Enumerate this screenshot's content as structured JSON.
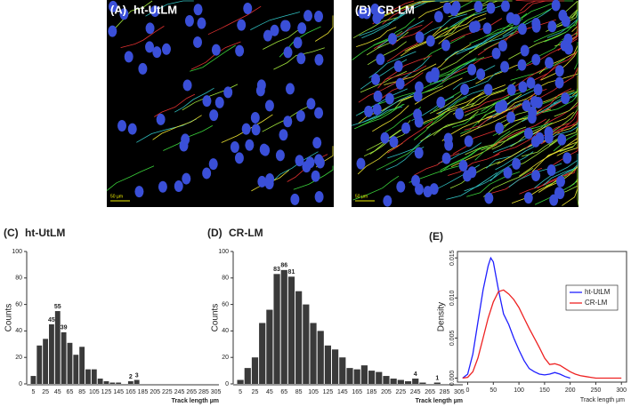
{
  "images": [
    {
      "panel": "(A)",
      "title": "ht-UtLM",
      "scale_bar": "50 µm"
    },
    {
      "panel": "(B)",
      "title": "CR-LM",
      "scale_bar": "50 µm"
    }
  ],
  "chart_data": [
    {
      "type": "bar",
      "panel": "(C)",
      "title": "ht-UtLM",
      "y_label": "Counts",
      "x_label": "Track length µm",
      "color": "#3a3a3a",
      "categories": [
        "5",
        null,
        "25",
        null,
        "45",
        null,
        "65",
        null,
        "85",
        null,
        "105",
        null,
        "125",
        null,
        "145",
        null,
        "165",
        null,
        "185",
        null,
        "205",
        null,
        "225",
        null,
        "245",
        null,
        "265",
        null,
        "285",
        null,
        "305"
      ],
      "values": [
        6,
        29,
        34,
        45,
        55,
        39,
        31,
        22,
        28,
        11,
        11,
        4,
        2,
        1,
        1,
        0,
        2,
        3,
        0,
        0,
        0,
        0,
        0,
        0,
        0,
        0,
        0,
        0,
        0,
        0,
        0
      ],
      "value_labels": [
        null,
        null,
        null,
        "45",
        "55",
        "39",
        null,
        null,
        null,
        null,
        null,
        null,
        null,
        null,
        null,
        null,
        "2",
        "3",
        null,
        null,
        null,
        null,
        null,
        null,
        null,
        null,
        null,
        null,
        null,
        null,
        null
      ],
      "ylim": [
        0,
        100
      ],
      "yticks": [
        0,
        20,
        40,
        60,
        80,
        100
      ]
    },
    {
      "type": "bar",
      "panel": "(D)",
      "title": "CR-LM",
      "y_label": "Counts",
      "x_label": "Track length µm",
      "color": "#3a3a3a",
      "categories": [
        "5",
        null,
        "25",
        null,
        "45",
        null,
        "65",
        null,
        "85",
        null,
        "105",
        null,
        "125",
        null,
        "145",
        null,
        "165",
        null,
        "185",
        null,
        "205",
        null,
        "225",
        null,
        "245",
        null,
        "265",
        null,
        "285",
        null,
        "305"
      ],
      "values": [
        3,
        12,
        20,
        46,
        56,
        83,
        86,
        81,
        70,
        60,
        46,
        40,
        29,
        26,
        20,
        12,
        11,
        14,
        10,
        9,
        6,
        4,
        3,
        2,
        4,
        1,
        0,
        1,
        0,
        0,
        0
      ],
      "value_labels": [
        null,
        null,
        null,
        null,
        null,
        "83",
        "86",
        "81",
        null,
        null,
        null,
        null,
        null,
        null,
        null,
        null,
        null,
        null,
        null,
        null,
        null,
        null,
        null,
        null,
        "4",
        null,
        null,
        "1",
        null,
        null,
        null
      ],
      "ylim": [
        0,
        100
      ],
      "yticks": [
        0,
        20,
        40,
        60,
        80,
        100
      ]
    },
    {
      "type": "line",
      "panel": "(E)",
      "y_label": "Density",
      "x_label": "Track length µm",
      "legend": "right",
      "xlim": [
        -20,
        310
      ],
      "xticks": [
        0,
        50,
        100,
        150,
        200,
        250,
        300
      ],
      "ylim": [
        -0.0005,
        0.0158
      ],
      "yticks": [
        {
          "value": 0,
          "label": "0.000"
        },
        {
          "value": 0.005,
          "label": "0.005"
        },
        {
          "value": 0.01,
          "label": "0.010"
        },
        {
          "value": 0.015,
          "label": "0.015"
        }
      ],
      "series": [
        {
          "name": "ht-UtLM",
          "color": "#1f1fff",
          "x": [
            -10,
            0,
            10,
            20,
            30,
            40,
            45,
            50,
            60,
            70,
            80,
            90,
            100,
            110,
            120,
            130,
            140,
            150,
            160,
            170,
            180,
            190,
            200
          ],
          "values": [
            0,
            0.0005,
            0.003,
            0.007,
            0.011,
            0.014,
            0.015,
            0.0145,
            0.011,
            0.008,
            0.0067,
            0.005,
            0.0035,
            0.0022,
            0.0012,
            0.0008,
            0.0005,
            0.0004,
            0.0005,
            0.0007,
            0.0005,
            0.0002,
            0
          ]
        },
        {
          "name": "CR-LM",
          "color": "#ee2222",
          "x": [
            -10,
            0,
            10,
            20,
            30,
            40,
            50,
            60,
            70,
            80,
            90,
            100,
            110,
            120,
            130,
            140,
            150,
            160,
            170,
            180,
            190,
            200,
            210,
            220,
            230,
            240,
            250,
            260,
            280,
            300
          ],
          "values": [
            0,
            0.0001,
            0.0008,
            0.0025,
            0.005,
            0.0075,
            0.0095,
            0.0108,
            0.011,
            0.0105,
            0.0098,
            0.0088,
            0.0075,
            0.0062,
            0.005,
            0.0038,
            0.0025,
            0.0017,
            0.0018,
            0.0016,
            0.0012,
            0.0008,
            0.0005,
            0.0003,
            0.0002,
            0.0001,
            0,
            0,
            0,
            0
          ]
        }
      ]
    }
  ]
}
